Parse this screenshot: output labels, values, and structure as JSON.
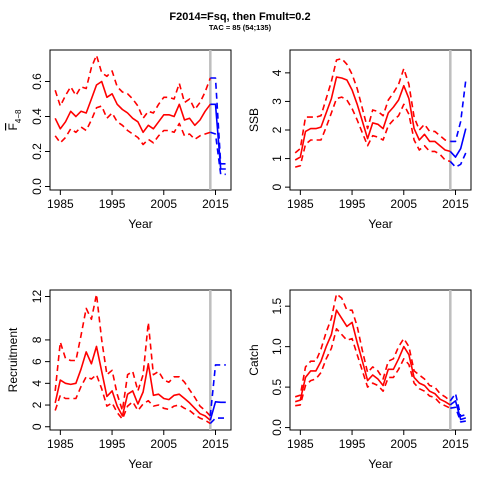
{
  "figure": {
    "title": "F2014=Fsq, then Fmult=0.2",
    "subtitle": "TAC = 85 (54;135)"
  },
  "colors": {
    "historic": "#ff0000",
    "projection": "#0000ff",
    "vline": "#bebebe",
    "axis": "#000000"
  },
  "chart_data": [
    {
      "type": "line",
      "name": "F",
      "xlabel": "Year",
      "ylabel": "F",
      "ylabel_sub": "4−8",
      "xlim": [
        1983,
        2018
      ],
      "ylim": [
        -0.02,
        0.78
      ],
      "xticks": [
        1985,
        1995,
        2005,
        2015
      ],
      "yticks": [
        0.0,
        0.2,
        0.4,
        0.6
      ],
      "ytick_labels": [
        "0.0",
        "0.2",
        "0.4",
        "0.6"
      ],
      "vline": 2014,
      "historic": {
        "x": [
          1984,
          1985,
          1986,
          1987,
          1988,
          1989,
          1990,
          1991,
          1992,
          1993,
          1994,
          1995,
          1996,
          1997,
          1998,
          1999,
          2000,
          2001,
          2002,
          2003,
          2004,
          2005,
          2006,
          2007,
          2008,
          2009,
          2010,
          2011,
          2012,
          2013,
          2014
        ],
        "median": [
          0.39,
          0.33,
          0.37,
          0.43,
          0.4,
          0.43,
          0.42,
          0.5,
          0.58,
          0.6,
          0.51,
          0.53,
          0.47,
          0.44,
          0.42,
          0.39,
          0.37,
          0.31,
          0.35,
          0.33,
          0.37,
          0.41,
          0.41,
          0.4,
          0.47,
          0.38,
          0.39,
          0.35,
          0.38,
          0.43,
          0.47
        ],
        "lower": [
          0.29,
          0.25,
          0.28,
          0.33,
          0.31,
          0.34,
          0.32,
          0.38,
          0.45,
          0.46,
          0.39,
          0.42,
          0.37,
          0.35,
          0.32,
          0.3,
          0.28,
          0.24,
          0.27,
          0.25,
          0.29,
          0.32,
          0.32,
          0.31,
          0.36,
          0.29,
          0.3,
          0.27,
          0.29,
          0.3,
          0.31
        ],
        "upper": [
          0.55,
          0.46,
          0.52,
          0.57,
          0.52,
          0.57,
          0.56,
          0.68,
          0.75,
          0.65,
          0.63,
          0.66,
          0.57,
          0.54,
          0.53,
          0.5,
          0.46,
          0.39,
          0.43,
          0.42,
          0.47,
          0.51,
          0.51,
          0.5,
          0.59,
          0.48,
          0.5,
          0.44,
          0.48,
          0.54,
          0.62
        ]
      },
      "projection": {
        "x": [
          2014,
          2015,
          2016,
          2017
        ],
        "median": [
          0.47,
          0.47,
          0.1,
          0.1
        ],
        "lower": [
          0.31,
          0.3,
          0.07,
          0.07
        ],
        "upper": [
          0.62,
          0.62,
          0.13,
          0.13
        ]
      }
    },
    {
      "type": "line",
      "name": "SSB",
      "xlabel": "Year",
      "ylabel": "SSB",
      "ylabel_sub": "",
      "xlim": [
        1983,
        2018
      ],
      "ylim": [
        -0.1,
        4.8
      ],
      "xticks": [
        1985,
        1995,
        2005,
        2015
      ],
      "yticks": [
        0,
        1,
        2,
        3,
        4
      ],
      "ytick_labels": [
        "0",
        "1",
        "2",
        "3",
        "4"
      ],
      "vline": 2014,
      "historic": {
        "x": [
          1984,
          1985,
          1986,
          1987,
          1988,
          1989,
          1990,
          1991,
          1992,
          1993,
          1994,
          1995,
          1996,
          1997,
          1998,
          1999,
          2000,
          2001,
          2002,
          2003,
          2004,
          2005,
          2006,
          2007,
          2008,
          2009,
          2010,
          2011,
          2012,
          2013,
          2014
        ],
        "median": [
          0.95,
          1.05,
          1.95,
          2.05,
          2.05,
          2.1,
          2.6,
          3.1,
          3.85,
          3.82,
          3.75,
          3.4,
          2.9,
          2.3,
          1.7,
          2.25,
          2.2,
          2.05,
          2.6,
          2.8,
          3.05,
          3.55,
          3.1,
          2.05,
          1.65,
          1.85,
          1.6,
          1.6,
          1.45,
          1.3,
          1.25
        ],
        "lower": [
          0.7,
          0.75,
          1.5,
          1.65,
          1.65,
          1.65,
          2.1,
          2.6,
          3.1,
          3.15,
          3.05,
          2.75,
          2.35,
          1.9,
          1.45,
          1.8,
          1.75,
          1.65,
          2.15,
          2.35,
          2.5,
          2.9,
          2.55,
          1.65,
          1.3,
          1.45,
          1.25,
          1.25,
          1.15,
          0.95,
          0.9
        ],
        "upper": [
          1.2,
          1.35,
          2.45,
          2.45,
          2.45,
          2.5,
          3.1,
          3.7,
          4.45,
          4.5,
          4.3,
          3.95,
          3.45,
          2.75,
          2.05,
          2.7,
          2.65,
          2.5,
          3.05,
          3.3,
          3.6,
          4.15,
          3.6,
          2.45,
          2.0,
          2.2,
          1.95,
          1.95,
          1.8,
          1.65,
          1.6
        ]
      },
      "projection": {
        "x": [
          2014,
          2015,
          2016,
          2017
        ],
        "median": [
          1.25,
          1.05,
          1.35,
          2.05
        ],
        "lower": [
          0.9,
          0.7,
          0.8,
          1.2
        ],
        "upper": [
          1.6,
          1.6,
          2.3,
          3.75
        ]
      }
    },
    {
      "type": "line",
      "name": "Recruitment",
      "xlabel": "Year",
      "ylabel": "Recruitment",
      "ylabel_sub": "",
      "xlim": [
        1983,
        2018
      ],
      "ylim": [
        -0.3,
        12.6
      ],
      "xticks": [
        1985,
        1995,
        2005,
        2015
      ],
      "yticks": [
        0,
        2,
        4,
        6,
        8,
        12
      ],
      "ytick_labels": [
        "0",
        "2",
        "4",
        "6",
        "8",
        "12"
      ],
      "vline": 2014,
      "historic": {
        "x": [
          1984,
          1985,
          1986,
          1987,
          1988,
          1989,
          1990,
          1991,
          1992,
          1993,
          1994,
          1995,
          1996,
          1997,
          1998,
          1999,
          2000,
          2001,
          2002,
          2003,
          2004,
          2005,
          2006,
          2007,
          2008,
          2009,
          2010,
          2011,
          2012,
          2013,
          2014
        ],
        "median": [
          2.2,
          4.3,
          4.0,
          3.9,
          4.0,
          5.3,
          6.9,
          5.8,
          7.4,
          5.1,
          2.8,
          3.3,
          1.9,
          1.0,
          3.0,
          3.3,
          2.1,
          3.2,
          5.8,
          2.9,
          3.0,
          2.6,
          2.5,
          2.9,
          3.0,
          2.6,
          2.2,
          1.7,
          1.2,
          1.0,
          0.6
        ],
        "lower": [
          1.5,
          2.9,
          2.6,
          2.6,
          2.6,
          3.7,
          4.6,
          4.4,
          4.8,
          3.5,
          1.9,
          2.2,
          1.3,
          0.7,
          1.9,
          2.3,
          1.5,
          2.1,
          2.4,
          1.9,
          2.0,
          1.7,
          1.6,
          1.9,
          2.0,
          1.7,
          1.5,
          1.1,
          0.8,
          0.6,
          0.3
        ],
        "upper": [
          3.3,
          7.8,
          6.3,
          6.1,
          6.1,
          8.4,
          10.9,
          9.9,
          12.2,
          8.0,
          4.8,
          5.2,
          3.0,
          1.5,
          4.8,
          5.1,
          3.3,
          4.8,
          9.6,
          4.8,
          5.1,
          4.3,
          4.1,
          4.6,
          4.6,
          4.1,
          3.4,
          2.7,
          1.9,
          1.5,
          1.0
        ]
      },
      "projection": {
        "x": [
          2014,
          2015,
          2016,
          2017
        ],
        "median": [
          0.6,
          2.3,
          2.25,
          2.25
        ],
        "lower": [
          0.3,
          0.8,
          0.8,
          0.8
        ],
        "upper": [
          1.0,
          5.7,
          5.7,
          5.7
        ]
      }
    },
    {
      "type": "line",
      "name": "Catch",
      "xlabel": "Year",
      "ylabel": "Catch",
      "ylabel_sub": "",
      "xlim": [
        1983,
        2018
      ],
      "ylim": [
        -0.03,
        1.7
      ],
      "xticks": [
        1985,
        1995,
        2005,
        2015
      ],
      "yticks": [
        0.0,
        0.5,
        1.0,
        1.5
      ],
      "ytick_labels": [
        "0.0",
        "0.5",
        "1.0",
        "1.5"
      ],
      "vline": 2014,
      "historic": {
        "x": [
          1984,
          1985,
          1986,
          1987,
          1988,
          1989,
          1990,
          1991,
          1992,
          1993,
          1994,
          1995,
          1996,
          1997,
          1998,
          1999,
          2000,
          2001,
          2002,
          2003,
          2004,
          2005,
          2006,
          2007,
          2008,
          2009,
          2010,
          2011,
          2012,
          2013,
          2014
        ],
        "median": [
          0.32,
          0.34,
          0.62,
          0.7,
          0.7,
          0.82,
          1.0,
          1.15,
          1.45,
          1.35,
          1.25,
          1.3,
          1.05,
          0.82,
          0.58,
          0.65,
          0.6,
          0.52,
          0.72,
          0.72,
          0.85,
          1.0,
          0.9,
          0.62,
          0.55,
          0.52,
          0.45,
          0.42,
          0.35,
          0.32,
          0.28
        ],
        "lower": [
          0.27,
          0.28,
          0.52,
          0.58,
          0.6,
          0.68,
          0.85,
          0.98,
          1.22,
          1.15,
          1.08,
          1.1,
          0.9,
          0.7,
          0.5,
          0.55,
          0.52,
          0.45,
          0.62,
          0.62,
          0.72,
          0.85,
          0.78,
          0.55,
          0.48,
          0.45,
          0.39,
          0.37,
          0.3,
          0.27,
          0.24
        ],
        "upper": [
          0.38,
          0.4,
          0.75,
          0.82,
          0.82,
          0.97,
          1.18,
          1.35,
          1.65,
          1.6,
          1.45,
          1.45,
          1.25,
          0.95,
          0.68,
          0.75,
          0.7,
          0.6,
          0.82,
          0.85,
          1.0,
          1.1,
          1.0,
          0.7,
          0.65,
          0.6,
          0.52,
          0.5,
          0.42,
          0.38,
          0.33
        ]
      },
      "projection": {
        "x": [
          2014,
          2015,
          2016,
          2017
        ],
        "median": [
          0.28,
          0.33,
          0.1,
          0.12
        ],
        "lower": [
          0.24,
          0.25,
          0.07,
          0.08
        ],
        "upper": [
          0.33,
          0.42,
          0.14,
          0.16
        ]
      }
    }
  ]
}
